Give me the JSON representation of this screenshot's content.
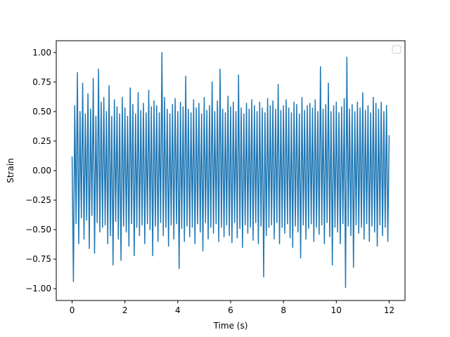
{
  "chart_data": {
    "type": "line",
    "title": "",
    "xlabel": "Time (s)",
    "ylabel": "Strain",
    "xlim": [
      -0.6,
      12.6
    ],
    "ylim": [
      -1.1,
      1.1
    ],
    "xticks": [
      0,
      2,
      4,
      6,
      8,
      10,
      12
    ],
    "xtick_labels": [
      "0",
      "2",
      "4",
      "6",
      "8",
      "10",
      "12"
    ],
    "yticks": [
      -1.0,
      -0.75,
      -0.5,
      -0.25,
      0.0,
      0.25,
      0.5,
      0.75,
      1.0
    ],
    "ytick_labels": [
      "−1.00",
      "−0.75",
      "−0.50",
      "−0.25",
      "0.00",
      "0.25",
      "0.50",
      "0.75",
      "1.00"
    ],
    "grid": false,
    "legend": {
      "placement": "top-right",
      "entries": []
    },
    "color": "#1f77b4",
    "series": [
      {
        "x": [
          0.0,
          0.05,
          0.1,
          0.15,
          0.2,
          0.25,
          0.3,
          0.35,
          0.4,
          0.45,
          0.5,
          0.55,
          0.6,
          0.65,
          0.7,
          0.75,
          0.8,
          0.85,
          0.9,
          0.95,
          1.0,
          1.05,
          1.1,
          1.15,
          1.2,
          1.25,
          1.3,
          1.35,
          1.4,
          1.45,
          1.5,
          1.55,
          1.6,
          1.65,
          1.7,
          1.75,
          1.8,
          1.85,
          1.9,
          1.95,
          2.0,
          2.05,
          2.1,
          2.15,
          2.2,
          2.25,
          2.3,
          2.35,
          2.4,
          2.45,
          2.5,
          2.55,
          2.6,
          2.65,
          2.7,
          2.75,
          2.8,
          2.85,
          2.9,
          2.95,
          3.0,
          3.05,
          3.1,
          3.15,
          3.2,
          3.25,
          3.3,
          3.35,
          3.4,
          3.45,
          3.5,
          3.55,
          3.6,
          3.65,
          3.7,
          3.75,
          3.8,
          3.85,
          3.9,
          3.95,
          4.0,
          4.05,
          4.1,
          4.15,
          4.2,
          4.25,
          4.3,
          4.35,
          4.4,
          4.45,
          4.5,
          4.55,
          4.6,
          4.65,
          4.7,
          4.75,
          4.8,
          4.85,
          4.9,
          4.95,
          5.0,
          5.05,
          5.1,
          5.15,
          5.2,
          5.25,
          5.3,
          5.35,
          5.4,
          5.45,
          5.5,
          5.55,
          5.6,
          5.65,
          5.7,
          5.75,
          5.8,
          5.85,
          5.9,
          5.95,
          6.0,
          6.05,
          6.1,
          6.15,
          6.2,
          6.25,
          6.3,
          6.35,
          6.4,
          6.45,
          6.5,
          6.55,
          6.6,
          6.65,
          6.7,
          6.75,
          6.8,
          6.85,
          6.9,
          6.95,
          7.0,
          7.05,
          7.1,
          7.15,
          7.2,
          7.25,
          7.3,
          7.35,
          7.4,
          7.45,
          7.5,
          7.55,
          7.6,
          7.65,
          7.7,
          7.75,
          7.8,
          7.85,
          7.9,
          7.95,
          8.0,
          8.05,
          8.1,
          8.15,
          8.2,
          8.25,
          8.3,
          8.35,
          8.4,
          8.45,
          8.5,
          8.55,
          8.6,
          8.65,
          8.7,
          8.75,
          8.8,
          8.85,
          8.9,
          8.95,
          9.0,
          9.05,
          9.1,
          9.15,
          9.2,
          9.25,
          9.3,
          9.35,
          9.4,
          9.45,
          9.5,
          9.55,
          9.6,
          9.65,
          9.7,
          9.75,
          9.8,
          9.85,
          9.9,
          9.95,
          10.0,
          10.05,
          10.1,
          10.15,
          10.2,
          10.25,
          10.3,
          10.35,
          10.4,
          10.45,
          10.5,
          10.55,
          10.6,
          10.65,
          10.7,
          10.75,
          10.8,
          10.85,
          10.9,
          10.95,
          11.0,
          11.05,
          11.1,
          11.15,
          11.2,
          11.25,
          11.3,
          11.35,
          11.4,
          11.45,
          11.5,
          11.55,
          11.6,
          11.65,
          11.7,
          11.75,
          11.8,
          11.85,
          11.9,
          11.95,
          12.0
        ],
        "y": [
          0.12,
          -0.94,
          0.55,
          -0.45,
          0.83,
          -0.62,
          0.5,
          -0.4,
          0.74,
          -0.58,
          0.48,
          -0.42,
          0.65,
          -0.66,
          0.52,
          -0.38,
          0.78,
          -0.7,
          0.46,
          -0.44,
          0.86,
          -0.52,
          0.58,
          -0.48,
          0.62,
          -0.46,
          0.5,
          -0.62,
          0.72,
          -0.55,
          0.46,
          -0.8,
          0.6,
          -0.43,
          0.54,
          -0.58,
          0.48,
          -0.76,
          0.62,
          -0.47,
          0.53,
          -0.52,
          0.46,
          -0.64,
          0.7,
          -0.45,
          0.56,
          -0.72,
          0.48,
          -0.48,
          0.66,
          -0.55,
          0.51,
          -0.46,
          0.57,
          -0.62,
          0.49,
          -0.45,
          0.68,
          -0.5,
          0.54,
          -0.72,
          0.59,
          -0.47,
          0.55,
          -0.6,
          0.49,
          -0.44,
          1.0,
          -0.55,
          0.62,
          -0.48,
          0.52,
          -0.64,
          0.48,
          -0.46,
          0.56,
          -0.58,
          0.61,
          -0.45,
          0.5,
          -0.83,
          0.58,
          -0.49,
          0.54,
          -0.6,
          0.8,
          -0.47,
          0.52,
          -0.56,
          0.49,
          -0.48,
          0.6,
          -0.62,
          0.53,
          -0.45,
          0.57,
          -0.52,
          0.48,
          -0.68,
          0.62,
          -0.44,
          0.51,
          -0.58,
          0.55,
          -0.48,
          0.75,
          -0.53,
          0.5,
          -0.45,
          0.59,
          -0.6,
          0.86,
          -0.48,
          0.52,
          -0.56,
          0.49,
          -0.46,
          0.63,
          -0.55,
          0.54,
          -0.61,
          0.58,
          -0.44,
          0.5,
          -0.57,
          0.81,
          -0.49,
          0.53,
          -0.65,
          0.48,
          -0.46,
          0.57,
          -0.53,
          0.52,
          -0.48,
          0.6,
          -0.59,
          0.55,
          -0.44,
          0.5,
          -0.62,
          0.58,
          -0.47,
          0.53,
          -0.9,
          0.49,
          -0.55,
          0.61,
          -0.48,
          0.55,
          -0.46,
          0.59,
          -0.58,
          0.52,
          -0.44,
          0.73,
          -0.62,
          0.51,
          -0.48,
          0.55,
          -0.53,
          0.6,
          -0.45,
          0.53,
          -0.57,
          0.49,
          -0.65,
          0.58,
          -0.47,
          0.56,
          -0.52,
          0.48,
          -0.74,
          0.62,
          -0.46,
          0.51,
          -0.58,
          0.55,
          -0.49,
          0.57,
          -0.45,
          0.53,
          -0.6,
          0.6,
          -0.48,
          0.5,
          -0.54,
          0.88,
          -0.46,
          0.52,
          -0.62,
          0.56,
          -0.44,
          0.74,
          -0.56,
          0.5,
          -0.8,
          0.55,
          -0.48,
          0.58,
          -0.52,
          0.49,
          -0.62,
          0.54,
          -0.45,
          0.61,
          -0.99,
          0.96,
          -0.47,
          0.52,
          -0.55,
          0.56,
          -0.82,
          0.5,
          -0.46,
          0.58,
          -0.53,
          0.53,
          -0.48,
          0.66,
          -0.58,
          0.51,
          -0.45,
          0.55,
          -0.6,
          0.49,
          -0.47,
          0.62,
          -0.52,
          0.57,
          -0.64,
          0.52,
          -0.46,
          0.58,
          -0.55,
          0.5,
          -0.48,
          0.55,
          -0.6,
          0.3
        ]
      }
    ]
  }
}
